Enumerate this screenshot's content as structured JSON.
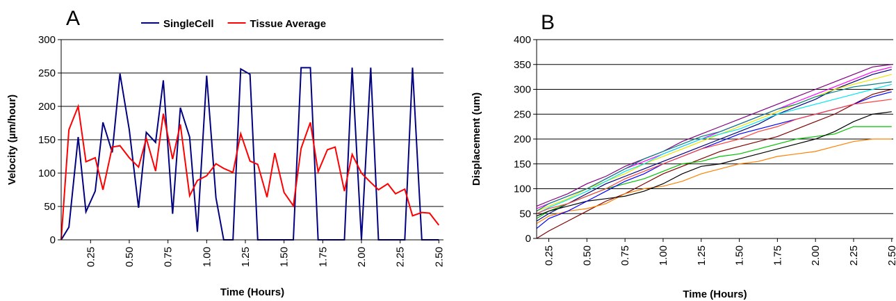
{
  "chart_data": [
    {
      "type": "line",
      "title": "A",
      "xlabel": "Time (Hours)",
      "ylabel": "Velocity (µm/hour)",
      "x": [
        0.06,
        0.11,
        0.17,
        0.22,
        0.28,
        0.33,
        0.39,
        0.44,
        0.5,
        0.56,
        0.61,
        0.67,
        0.72,
        0.78,
        0.83,
        0.89,
        0.94,
        1,
        1.06,
        1.11,
        1.17,
        1.22,
        1.28,
        1.33,
        1.39,
        1.44,
        1.5,
        1.56,
        1.61,
        1.67,
        1.72,
        1.78,
        1.83,
        1.89,
        1.94,
        2,
        2.06,
        2.11,
        2.17,
        2.22,
        2.28,
        2.33,
        2.39,
        2.44,
        2.5
      ],
      "series": [
        {
          "name": "SingleCell",
          "color": "#000080",
          "values": [
            0,
            19,
            154,
            42,
            73,
            176,
            131,
            249,
            165,
            48,
            161,
            146,
            239,
            39,
            198,
            154,
            12,
            246,
            63,
            0,
            0,
            256,
            248,
            0,
            0,
            0,
            0,
            0,
            258,
            258,
            0,
            0,
            0,
            0,
            258,
            0,
            258,
            0,
            0,
            0,
            0,
            258,
            0,
            0,
            0
          ]
        },
        {
          "name": "Tissue Average",
          "color": "#ff0000",
          "values": [
            0,
            165,
            200,
            117,
            123,
            75,
            139,
            141,
            123,
            109,
            152,
            103,
            189,
            121,
            173,
            66,
            89,
            96,
            114,
            107,
            101,
            159,
            118,
            113,
            64,
            130,
            71,
            51,
            137,
            176,
            102,
            135,
            139,
            73,
            128,
            100,
            86,
            75,
            84,
            69,
            76,
            36,
            41,
            40,
            22
          ]
        }
      ],
      "xlim": [
        0.06,
        2.53
      ],
      "ylim": [
        0,
        300
      ],
      "xticks": [
        0.25,
        {
          "value": 0.5,
          "label": "0.50"
        },
        0.75,
        {
          "value": 1,
          "label": "1.00"
        },
        1.25,
        {
          "value": 1.5,
          "label": "1.50"
        },
        1.75,
        {
          "value": 2,
          "label": "2.00"
        },
        2.25,
        {
          "value": 2.5,
          "label": "2.50"
        }
      ],
      "yticks": [
        0,
        50,
        100,
        150,
        200,
        250,
        300
      ],
      "grid": true,
      "legend": "top"
    },
    {
      "type": "line",
      "title": "B",
      "xlabel": "Time (Hours)",
      "ylabel": "Displacement (um)",
      "x": [
        0.17,
        0.25,
        0.375,
        0.5,
        0.625,
        0.75,
        0.875,
        1,
        1.125,
        1.25,
        1.375,
        1.5,
        1.625,
        1.75,
        1.875,
        2,
        2.125,
        2.25,
        2.375,
        2.5
      ],
      "series": [
        {
          "color": "#000080",
          "values": [
            35,
            50,
            70,
            90,
            110,
            125,
            140,
            155,
            170,
            185,
            200,
            215,
            230,
            250,
            265,
            280,
            300,
            315,
            330,
            340
          ]
        },
        {
          "color": "#ff00ff",
          "values": [
            60,
            70,
            85,
            100,
            120,
            140,
            155,
            170,
            185,
            200,
            215,
            230,
            245,
            260,
            275,
            290,
            305,
            320,
            335,
            345
          ]
        },
        {
          "color": "#e6e600",
          "values": [
            55,
            65,
            80,
            100,
            115,
            130,
            150,
            165,
            180,
            195,
            210,
            225,
            240,
            255,
            270,
            285,
            300,
            310,
            320,
            330
          ]
        },
        {
          "color": "#00e5ee",
          "values": [
            50,
            62,
            78,
            95,
            115,
            135,
            150,
            170,
            185,
            200,
            210,
            220,
            235,
            250,
            260,
            270,
            280,
            290,
            300,
            310
          ]
        },
        {
          "color": "#800080",
          "values": [
            65,
            75,
            90,
            110,
            125,
            145,
            160,
            175,
            195,
            210,
            225,
            240,
            255,
            270,
            285,
            300,
            315,
            330,
            345,
            350
          ]
        },
        {
          "color": "#800000",
          "values": [
            0,
            15,
            35,
            55,
            75,
            90,
            110,
            130,
            145,
            160,
            175,
            185,
            195,
            205,
            220,
            235,
            250,
            270,
            290,
            300
          ]
        },
        {
          "color": "#ff8000",
          "values": [
            30,
            45,
            55,
            60,
            70,
            90,
            100,
            105,
            115,
            130,
            140,
            150,
            155,
            165,
            170,
            175,
            185,
            195,
            200,
            200
          ]
        },
        {
          "color": "#00c000",
          "values": [
            40,
            55,
            70,
            85,
            100,
            110,
            120,
            135,
            150,
            155,
            165,
            170,
            180,
            190,
            200,
            205,
            210,
            225,
            225,
            225
          ]
        },
        {
          "color": "#000000",
          "values": [
            45,
            55,
            65,
            75,
            80,
            85,
            95,
            110,
            130,
            145,
            150,
            160,
            170,
            180,
            190,
            200,
            215,
            235,
            250,
            255
          ]
        },
        {
          "color": "#0000ff",
          "values": [
            20,
            40,
            55,
            75,
            95,
            115,
            130,
            150,
            165,
            180,
            195,
            210,
            220,
            230,
            240,
            250,
            260,
            270,
            285,
            295
          ]
        },
        {
          "color": "#008080",
          "values": [
            55,
            70,
            85,
            100,
            120,
            140,
            160,
            175,
            190,
            205,
            215,
            230,
            245,
            260,
            270,
            285,
            295,
            305,
            310,
            315
          ]
        },
        {
          "color": "#ff4040",
          "values": [
            50,
            60,
            70,
            85,
            100,
            120,
            135,
            150,
            165,
            180,
            190,
            200,
            215,
            225,
            240,
            250,
            260,
            270,
            275,
            280
          ]
        }
      ],
      "xlim": [
        0.17,
        2.51
      ],
      "ylim": [
        0,
        400
      ],
      "xticks": [
        0.25,
        {
          "value": 0.5,
          "label": "0.50"
        },
        0.75,
        {
          "value": 1,
          "label": "1.00"
        },
        1.25,
        {
          "value": 1.5,
          "label": "1.50"
        },
        1.75,
        {
          "value": 2,
          "label": "2.00"
        },
        2.25,
        {
          "value": 2.5,
          "label": "2.50"
        }
      ],
      "yticks": [
        0,
        50,
        100,
        150,
        200,
        250,
        300,
        350,
        400
      ],
      "grid": true
    }
  ]
}
